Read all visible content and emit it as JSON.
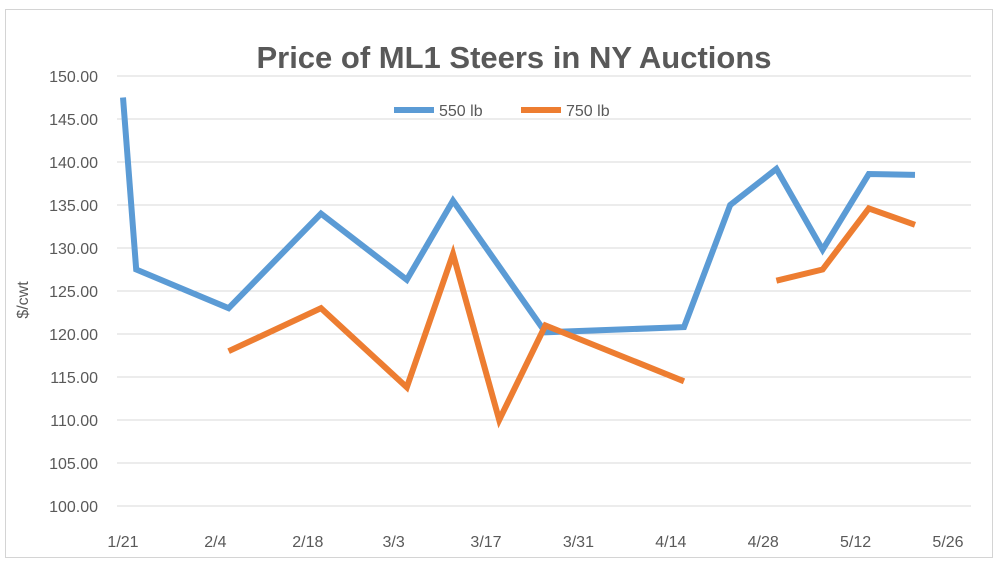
{
  "chart_data": {
    "type": "line",
    "title": "Price of ML1 Steers in NY Auctions",
    "xlabel": "",
    "ylabel": "$/cwt",
    "x_tick_labels": [
      "1/21",
      "2/4",
      "2/18",
      "3/3",
      "3/17",
      "3/31",
      "4/14",
      "4/28",
      "5/12",
      "5/26"
    ],
    "y_tick_labels": [
      "100.00",
      "105.00",
      "110.00",
      "115.00",
      "120.00",
      "125.00",
      "130.00",
      "135.00",
      "140.00",
      "145.00",
      "150.00"
    ],
    "ylim": [
      100,
      150
    ],
    "grid": true,
    "legend": "top-center",
    "series": [
      {
        "name": "550 lb",
        "color": "#5B9BD5",
        "points": [
          {
            "x": "1/21",
            "y": 147.5
          },
          {
            "x": "1/23",
            "y": 127.5
          },
          {
            "x": "2/6",
            "y": 123.0
          },
          {
            "x": "2/20",
            "y": 134.0
          },
          {
            "x": "3/5",
            "y": 126.3
          },
          {
            "x": "3/12",
            "y": 135.5
          },
          {
            "x": "3/26",
            "y": 120.2
          },
          {
            "x": "4/16",
            "y": 120.8
          },
          {
            "x": "4/23",
            "y": 135.0
          },
          {
            "x": "4/30",
            "y": 139.2
          },
          {
            "x": "5/7",
            "y": 129.8
          },
          {
            "x": "5/14",
            "y": 138.6
          },
          {
            "x": "5/21",
            "y": 138.5
          }
        ]
      },
      {
        "name": "750 lb",
        "color": "#ED7D31",
        "points": [
          {
            "x": "2/6",
            "y": 118.0
          },
          {
            "x": "2/20",
            "y": 123.0
          },
          {
            "x": "3/5",
            "y": 113.8
          },
          {
            "x": "3/12",
            "y": 129.3
          },
          {
            "x": "3/19",
            "y": 110.0
          },
          {
            "x": "3/26",
            "y": 121.0
          },
          {
            "x": "4/16",
            "y": 114.5
          },
          null,
          {
            "x": "4/30",
            "y": 126.2
          },
          {
            "x": "5/7",
            "y": 127.5
          },
          {
            "x": "5/14",
            "y": 134.6
          },
          {
            "x": "5/21",
            "y": 132.7
          }
        ]
      }
    ]
  }
}
